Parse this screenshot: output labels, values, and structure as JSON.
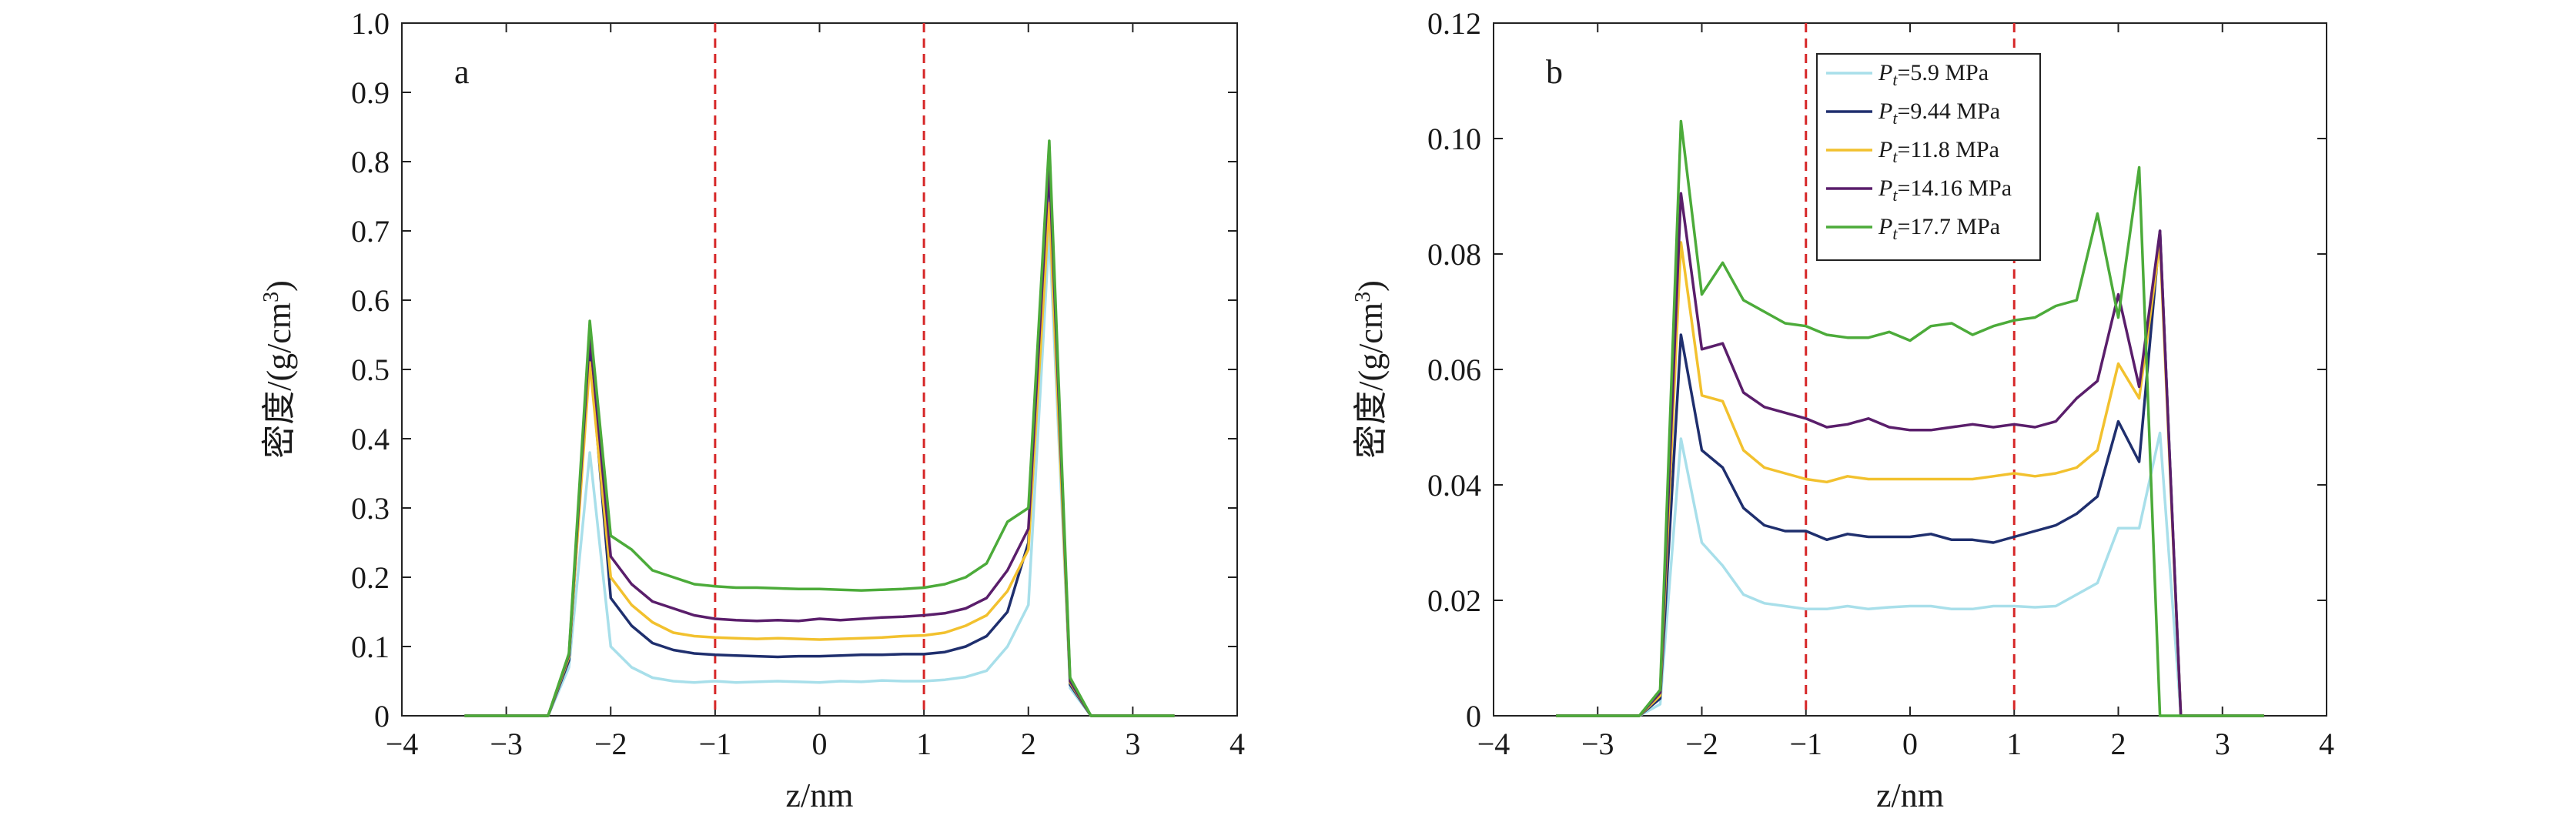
{
  "chart_data": [
    {
      "type": "line",
      "panel_label": "a",
      "xlabel": "z/nm",
      "ylabel": "密度/(g/cm",
      "ylabel_sup": "3",
      "ylabel_close": ")",
      "xlim": [
        -4,
        4
      ],
      "ylim": [
        0,
        1.0
      ],
      "xticks": [
        "−4",
        "−3",
        "−2",
        "−1",
        "0",
        "1",
        "2",
        "3",
        "4"
      ],
      "yticks": [
        "0",
        "0.1",
        "0.2",
        "0.3",
        "0.4",
        "0.5",
        "0.6",
        "0.7",
        "0.8",
        "0.9",
        "1.0"
      ],
      "grid": false,
      "vlines": [
        -1,
        1
      ],
      "x": [
        -3.4,
        -3.2,
        -3.0,
        -2.8,
        -2.6,
        -2.4,
        -2.2,
        -2.0,
        -1.8,
        -1.6,
        -1.4,
        -1.2,
        -1.0,
        -0.8,
        -0.6,
        -0.4,
        -0.2,
        0.0,
        0.2,
        0.4,
        0.6,
        0.8,
        1.0,
        1.2,
        1.4,
        1.6,
        1.8,
        2.0,
        2.2,
        2.4,
        2.6,
        2.8,
        3.0,
        3.2,
        3.4
      ],
      "series": [
        {
          "color": "#a8dfea",
          "values": [
            0,
            0,
            0,
            0,
            0,
            0.07,
            0.38,
            0.1,
            0.07,
            0.055,
            0.05,
            0.048,
            0.05,
            0.048,
            0.049,
            0.05,
            0.049,
            0.048,
            0.05,
            0.049,
            0.051,
            0.05,
            0.05,
            0.052,
            0.056,
            0.065,
            0.1,
            0.16,
            0.7,
            0.04,
            0,
            0,
            0,
            0,
            0
          ]
        },
        {
          "color": "#1f2f6e",
          "values": [
            0,
            0,
            0,
            0,
            0,
            0.08,
            0.53,
            0.17,
            0.13,
            0.105,
            0.095,
            0.09,
            0.088,
            0.087,
            0.086,
            0.085,
            0.086,
            0.086,
            0.087,
            0.088,
            0.088,
            0.089,
            0.089,
            0.092,
            0.1,
            0.115,
            0.15,
            0.25,
            0.79,
            0.045,
            0,
            0,
            0,
            0,
            0
          ]
        },
        {
          "color": "#f2c12e",
          "values": [
            0,
            0,
            0,
            0,
            0,
            0.085,
            0.51,
            0.2,
            0.16,
            0.135,
            0.12,
            0.115,
            0.113,
            0.112,
            0.111,
            0.112,
            0.111,
            0.11,
            0.111,
            0.112,
            0.113,
            0.115,
            0.116,
            0.12,
            0.13,
            0.145,
            0.18,
            0.24,
            0.74,
            0.048,
            0,
            0,
            0,
            0,
            0
          ]
        },
        {
          "color": "#5a1e6b",
          "values": [
            0,
            0,
            0,
            0,
            0,
            0.088,
            0.55,
            0.23,
            0.19,
            0.165,
            0.155,
            0.145,
            0.14,
            0.138,
            0.137,
            0.138,
            0.137,
            0.14,
            0.138,
            0.14,
            0.142,
            0.143,
            0.145,
            0.148,
            0.155,
            0.17,
            0.21,
            0.27,
            0.8,
            0.05,
            0,
            0,
            0,
            0,
            0
          ]
        },
        {
          "color": "#4cab3a",
          "values": [
            0,
            0,
            0,
            0,
            0,
            0.09,
            0.57,
            0.26,
            0.24,
            0.21,
            0.2,
            0.19,
            0.187,
            0.185,
            0.185,
            0.184,
            0.183,
            0.183,
            0.182,
            0.181,
            0.182,
            0.183,
            0.185,
            0.19,
            0.2,
            0.22,
            0.28,
            0.3,
            0.83,
            0.055,
            0,
            0,
            0,
            0,
            0
          ]
        }
      ]
    },
    {
      "type": "line",
      "panel_label": "b",
      "xlabel": "z/nm",
      "ylabel": "密度/(g/cm",
      "ylabel_sup": "3",
      "ylabel_close": ")",
      "xlim": [
        -4,
        4
      ],
      "ylim": [
        0,
        0.12
      ],
      "xticks": [
        "−4",
        "−3",
        "−2",
        "−1",
        "0",
        "1",
        "2",
        "3",
        "4"
      ],
      "yticks": [
        "0",
        "0.02",
        "0.04",
        "0.06",
        "0.08",
        "0.10",
        "0.12"
      ],
      "grid": false,
      "vlines": [
        -1,
        1
      ],
      "legend_position": "top-center",
      "x": [
        -3.4,
        -3.2,
        -3.0,
        -2.8,
        -2.6,
        -2.4,
        -2.2,
        -2.0,
        -1.8,
        -1.6,
        -1.4,
        -1.2,
        -1.0,
        -0.8,
        -0.6,
        -0.4,
        -0.2,
        0.0,
        0.2,
        0.4,
        0.6,
        0.8,
        1.0,
        1.2,
        1.4,
        1.6,
        1.8,
        2.0,
        2.2,
        2.4,
        2.6,
        2.8,
        3.0,
        3.2,
        3.4
      ],
      "series": [
        {
          "name_sym": "P",
          "name_sub": "t",
          "name_rest": "=5.9 MPa",
          "color": "#a8dfea",
          "values": [
            0,
            0,
            0,
            0,
            0,
            0.002,
            0.048,
            0.03,
            0.026,
            0.021,
            0.0195,
            0.019,
            0.0185,
            0.0185,
            0.019,
            0.0185,
            0.0188,
            0.019,
            0.019,
            0.0185,
            0.0185,
            0.019,
            0.019,
            0.0188,
            0.019,
            0.021,
            0.023,
            0.0325,
            0.0325,
            0.049,
            0,
            0,
            0,
            0,
            0
          ]
        },
        {
          "name_sym": "P",
          "name_sub": "t",
          "name_rest": "=9.44 MPa",
          "color": "#1f2f6e",
          "values": [
            0,
            0,
            0,
            0,
            0,
            0.003,
            0.066,
            0.046,
            0.043,
            0.036,
            0.033,
            0.032,
            0.032,
            0.0305,
            0.0315,
            0.031,
            0.031,
            0.031,
            0.0315,
            0.0305,
            0.0305,
            0.03,
            0.031,
            0.032,
            0.033,
            0.035,
            0.038,
            0.051,
            0.044,
            0.084,
            0,
            0,
            0,
            0,
            0
          ]
        },
        {
          "name_sym": "P",
          "name_sub": "t",
          "name_rest": "=11.8 MPa",
          "color": "#f2c12e",
          "values": [
            0,
            0,
            0,
            0,
            0,
            0.0035,
            0.082,
            0.0555,
            0.0545,
            0.046,
            0.043,
            0.042,
            0.041,
            0.0405,
            0.0415,
            0.041,
            0.041,
            0.041,
            0.041,
            0.041,
            0.041,
            0.0415,
            0.042,
            0.0415,
            0.042,
            0.043,
            0.046,
            0.061,
            0.055,
            0.082,
            0,
            0,
            0,
            0,
            0
          ]
        },
        {
          "name_sym": "P",
          "name_sub": "t",
          "name_rest": "=14.16 MPa",
          "color": "#5a1e6b",
          "values": [
            0,
            0,
            0,
            0,
            0,
            0.004,
            0.0905,
            0.0635,
            0.0645,
            0.056,
            0.0535,
            0.0525,
            0.0515,
            0.05,
            0.0505,
            0.0515,
            0.05,
            0.0495,
            0.0495,
            0.05,
            0.0505,
            0.05,
            0.0505,
            0.05,
            0.051,
            0.055,
            0.058,
            0.073,
            0.057,
            0.084,
            0,
            0,
            0,
            0,
            0
          ]
        },
        {
          "name_sym": "P",
          "name_sub": "t",
          "name_rest": "=17.7 MPa",
          "color": "#4cab3a",
          "values": [
            0,
            0,
            0,
            0,
            0,
            0.0045,
            0.103,
            0.073,
            0.0785,
            0.072,
            0.07,
            0.068,
            0.0675,
            0.066,
            0.0655,
            0.0655,
            0.0665,
            0.065,
            0.0675,
            0.068,
            0.066,
            0.0675,
            0.0685,
            0.069,
            0.071,
            0.072,
            0.087,
            0.069,
            0.095,
            0.0,
            0,
            0,
            0,
            0,
            0
          ]
        }
      ]
    }
  ]
}
